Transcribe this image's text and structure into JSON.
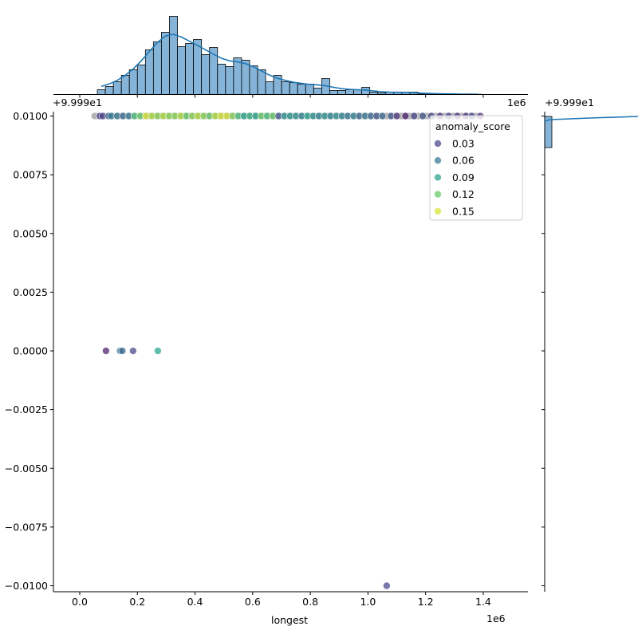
{
  "chart_data": {
    "type": "scatter",
    "subtype": "jointplot",
    "xlabel": "longest",
    "ylabel": "",
    "x_offset_label": "1e6",
    "y_offset_label": "+9.999e1",
    "xlim": [
      -0.09,
      1.55
    ],
    "ylim": [
      -0.0102,
      0.0102
    ],
    "x_ticks": [
      "0.0",
      "0.2",
      "0.4",
      "0.6",
      "0.8",
      "1.0",
      "1.2",
      "1.4"
    ],
    "x_tick_values": [
      0.0,
      0.2,
      0.4,
      0.6,
      0.8,
      1.0,
      1.2,
      1.4
    ],
    "y_ticks": [
      "0.0100",
      "0.0075",
      "0.0050",
      "0.0025",
      "0.0000",
      "−0.0025",
      "−0.0050",
      "−0.0075",
      "−0.0100"
    ],
    "y_tick_values": [
      0.01,
      0.0075,
      0.005,
      0.0025,
      0,
      -0.0025,
      -0.005,
      -0.0075,
      -0.01
    ],
    "grid": false,
    "hue": {
      "title": "anomaly_score",
      "legend_values": [
        "0.03",
        "0.06",
        "0.09",
        "0.12",
        "0.15"
      ],
      "legend_position": "upper-right",
      "colormap": "viridis",
      "range": [
        0.0,
        0.16
      ]
    },
    "points": [
      {
        "x": 0.07,
        "y": 0.01,
        "s": 0.03
      },
      {
        "x": 0.08,
        "y": 0.01,
        "s": 0.03
      },
      {
        "x": 0.1,
        "y": 0.01,
        "s": 0.05
      },
      {
        "x": 0.11,
        "y": 0.01,
        "s": 0.06
      },
      {
        "x": 0.13,
        "y": 0.01,
        "s": 0.06
      },
      {
        "x": 0.15,
        "y": 0.01,
        "s": 0.05
      },
      {
        "x": 0.17,
        "y": 0.01,
        "s": 0.06
      },
      {
        "x": 0.19,
        "y": 0.01,
        "s": 0.11
      },
      {
        "x": 0.21,
        "y": 0.01,
        "s": 0.12
      },
      {
        "x": 0.23,
        "y": 0.01,
        "s": 0.15
      },
      {
        "x": 0.25,
        "y": 0.01,
        "s": 0.14
      },
      {
        "x": 0.27,
        "y": 0.01,
        "s": 0.13
      },
      {
        "x": 0.29,
        "y": 0.01,
        "s": 0.14
      },
      {
        "x": 0.31,
        "y": 0.01,
        "s": 0.13
      },
      {
        "x": 0.33,
        "y": 0.01,
        "s": 0.13
      },
      {
        "x": 0.35,
        "y": 0.01,
        "s": 0.14
      },
      {
        "x": 0.37,
        "y": 0.01,
        "s": 0.12
      },
      {
        "x": 0.39,
        "y": 0.01,
        "s": 0.13
      },
      {
        "x": 0.41,
        "y": 0.01,
        "s": 0.14
      },
      {
        "x": 0.43,
        "y": 0.01,
        "s": 0.13
      },
      {
        "x": 0.45,
        "y": 0.01,
        "s": 0.12
      },
      {
        "x": 0.47,
        "y": 0.01,
        "s": 0.14
      },
      {
        "x": 0.49,
        "y": 0.01,
        "s": 0.15
      },
      {
        "x": 0.51,
        "y": 0.01,
        "s": 0.15
      },
      {
        "x": 0.53,
        "y": 0.01,
        "s": 0.13
      },
      {
        "x": 0.55,
        "y": 0.01,
        "s": 0.11
      },
      {
        "x": 0.57,
        "y": 0.01,
        "s": 0.09
      },
      {
        "x": 0.59,
        "y": 0.01,
        "s": 0.1
      },
      {
        "x": 0.61,
        "y": 0.01,
        "s": 0.09
      },
      {
        "x": 0.63,
        "y": 0.01,
        "s": 0.12
      },
      {
        "x": 0.65,
        "y": 0.01,
        "s": 0.11
      },
      {
        "x": 0.67,
        "y": 0.01,
        "s": 0.12
      },
      {
        "x": 0.69,
        "y": 0.01,
        "s": 0.04
      },
      {
        "x": 0.71,
        "y": 0.01,
        "s": 0.08
      },
      {
        "x": 0.73,
        "y": 0.01,
        "s": 0.08
      },
      {
        "x": 0.75,
        "y": 0.01,
        "s": 0.08
      },
      {
        "x": 0.77,
        "y": 0.01,
        "s": 0.07
      },
      {
        "x": 0.79,
        "y": 0.01,
        "s": 0.09
      },
      {
        "x": 0.81,
        "y": 0.01,
        "s": 0.08
      },
      {
        "x": 0.83,
        "y": 0.01,
        "s": 0.07
      },
      {
        "x": 0.85,
        "y": 0.01,
        "s": 0.08
      },
      {
        "x": 0.87,
        "y": 0.01,
        "s": 0.07
      },
      {
        "x": 0.89,
        "y": 0.01,
        "s": 0.08
      },
      {
        "x": 0.91,
        "y": 0.01,
        "s": 0.07
      },
      {
        "x": 0.93,
        "y": 0.01,
        "s": 0.06
      },
      {
        "x": 0.95,
        "y": 0.01,
        "s": 0.07
      },
      {
        "x": 0.97,
        "y": 0.01,
        "s": 0.05
      },
      {
        "x": 0.99,
        "y": 0.01,
        "s": 0.06
      },
      {
        "x": 1.01,
        "y": 0.01,
        "s": 0.05
      },
      {
        "x": 1.03,
        "y": 0.01,
        "s": 0.04
      },
      {
        "x": 1.05,
        "y": 0.01,
        "s": 0.05
      },
      {
        "x": 1.08,
        "y": 0.01,
        "s": 0.04
      },
      {
        "x": 1.1,
        "y": 0.01,
        "s": 0.02
      },
      {
        "x": 1.13,
        "y": 0.01,
        "s": 0.01
      },
      {
        "x": 1.16,
        "y": 0.01,
        "s": 0.03
      },
      {
        "x": 1.19,
        "y": 0.01,
        "s": 0.04
      },
      {
        "x": 1.22,
        "y": 0.01,
        "s": 0.03
      },
      {
        "x": 1.25,
        "y": 0.01,
        "s": 0.02
      },
      {
        "x": 1.28,
        "y": 0.01,
        "s": 0.03
      },
      {
        "x": 1.31,
        "y": 0.01,
        "s": 0.02
      },
      {
        "x": 1.34,
        "y": 0.01,
        "s": 0.02
      },
      {
        "x": 1.36,
        "y": 0.01,
        "s": 0.03
      },
      {
        "x": 1.39,
        "y": 0.01,
        "s": 0.02
      },
      {
        "x": 0.091,
        "y": 0.0,
        "s": 0.01
      },
      {
        "x": 0.14,
        "y": 0.0,
        "s": 0.06
      },
      {
        "x": 0.148,
        "y": 0.0,
        "s": 0.05
      },
      {
        "x": 0.185,
        "y": 0.0,
        "s": 0.03
      },
      {
        "x": 0.271,
        "y": 0.0,
        "s": 0.09
      },
      {
        "x": 1.065,
        "y": -0.01,
        "s": 0.03
      }
    ],
    "x_marginal": {
      "type": "histogram",
      "kde": true,
      "bin_start": 0.061,
      "bin_width": 0.0278,
      "counts": [
        6,
        10,
        16,
        24,
        31,
        37,
        56,
        66,
        78,
        98,
        60,
        64,
        69,
        50,
        59,
        38,
        35,
        46,
        43,
        36,
        31,
        16,
        24,
        16,
        15,
        13,
        13,
        8,
        20,
        5,
        5,
        6,
        6,
        9,
        3,
        2,
        3,
        3,
        3,
        3,
        1,
        1,
        1,
        1,
        0.5,
        0.5,
        0.3,
        0.3
      ]
    },
    "y_marginal": {
      "type": "histogram",
      "kde": true
    }
  }
}
